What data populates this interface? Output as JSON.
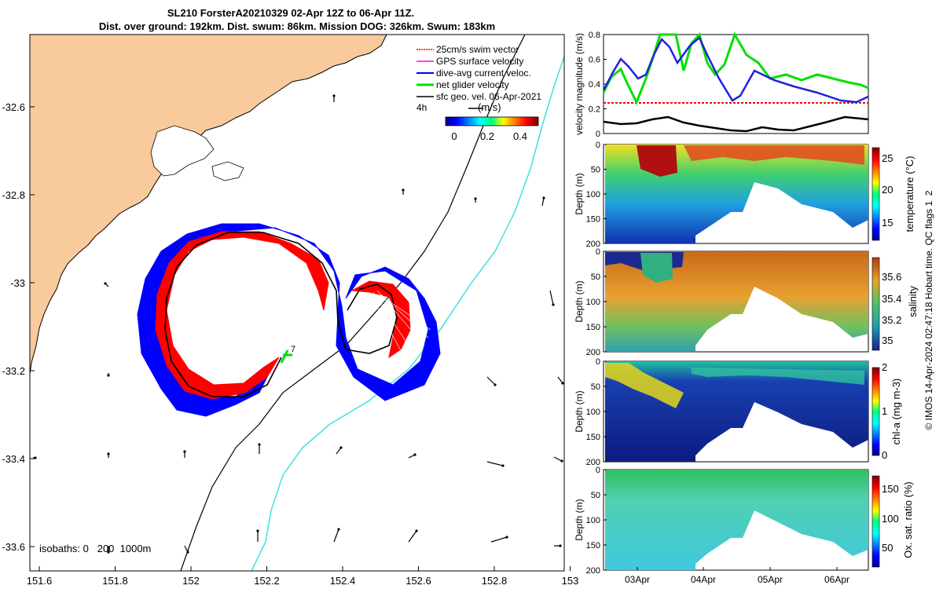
{
  "header": {
    "title_line1": "SL210 ForsterA20210329 02-Apr 12Z to 06-Apr 11Z.",
    "title_line2": "Dist. over ground: 192km. Dist. swum: 86km. Mission DOG: 326km. Swum: 183km"
  },
  "map": {
    "land_color": "#f9cb9c",
    "track_colors": {
      "swim": "#ff0000",
      "gps": "#ff00ff",
      "current": "#0000ff",
      "net": "#00e000",
      "geo": "#000000",
      "isobath_shallow": "#000000",
      "isobath_deep": "#40e0e0"
    },
    "x_ticks": [
      "151.6",
      "151.8",
      "152",
      "152.2",
      "152.4",
      "152.6",
      "152.8",
      "153"
    ],
    "y_ticks": [
      "-32.6",
      "-32.8",
      "-33",
      "-33.2",
      "-33.4",
      "-33.6"
    ],
    "legend": [
      "25cm/s swim vector",
      "GPS surface velocity",
      "dive-avg current veloc.",
      "net glider velocity",
      "sfc geo. vel. 06-Apr-2021"
    ],
    "scale_label": "4h",
    "colorbar_title": "(m/s)",
    "colorbar_ticks": [
      "0",
      "0.2",
      "0.4"
    ],
    "isobaths_label": "isobaths: 0   200  1000m",
    "point_label": "7"
  },
  "panels": {
    "velocity": {
      "ylabel": "velocity magnitude (m/s)",
      "yticks": [
        "0",
        "0.2",
        "0.4",
        "0.6",
        "0.8"
      ]
    },
    "temperature": {
      "ylabel": "Depth (m)",
      "cbar_label": "temperature (°C)",
      "cbar_ticks": [
        "15",
        "20",
        "25"
      ],
      "depth_ticks": [
        "0",
        "50",
        "100",
        "150",
        "200"
      ]
    },
    "salinity": {
      "ylabel": "Depth (m)",
      "cbar_label": "salinity",
      "cbar_ticks": [
        "35",
        "35.2",
        "35.4",
        "35.6"
      ],
      "depth_ticks": [
        "0",
        "50",
        "100",
        "150",
        "200"
      ]
    },
    "chla": {
      "ylabel": "Depth (m)",
      "cbar_label": "chl-a (mg m-3)",
      "cbar_ticks": [
        "0",
        "1",
        "2"
      ],
      "depth_ticks": [
        "0",
        "50",
        "100",
        "150",
        "200"
      ]
    },
    "oxygen": {
      "ylabel": "Depth (m)",
      "cbar_label": "Ox. sat. ratio (%)",
      "cbar_ticks": [
        "50",
        "100",
        "150"
      ],
      "depth_ticks": [
        "0",
        "50",
        "100",
        "150",
        "200"
      ]
    },
    "x_ticks": [
      "03Apr",
      "04Apr",
      "05Apr",
      "06Apr"
    ]
  },
  "footer": {
    "credit": "© IMOS 14-Apr-2024 02:47:18 Hobart time. QC flags 1  2"
  }
}
